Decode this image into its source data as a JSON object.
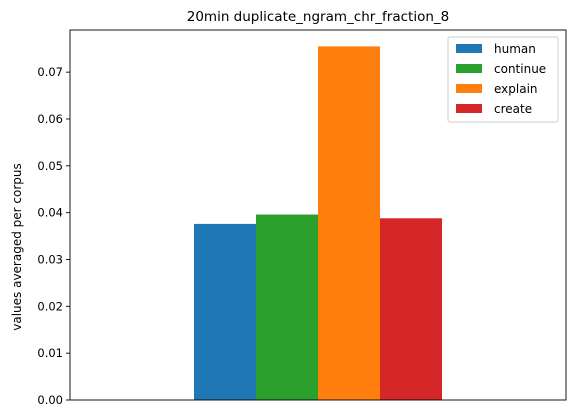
{
  "chart_data": {
    "type": "bar",
    "title": "20min duplicate_ngram_chr_fraction_8",
    "xlabel": "",
    "ylabel": "values averaged per corpus",
    "ylim": [
      0,
      0.079
    ],
    "yticks": [
      "0.00",
      "0.01",
      "0.02",
      "0.03",
      "0.04",
      "0.05",
      "0.06",
      "0.07"
    ],
    "grid": false,
    "legend_position": "top-right",
    "series": [
      {
        "name": "human",
        "value": 0.0376,
        "color": "#1f77b4"
      },
      {
        "name": "continue",
        "value": 0.0396,
        "color": "#2ca02c"
      },
      {
        "name": "explain",
        "value": 0.0755,
        "color": "#ff7f0e"
      },
      {
        "name": "create",
        "value": 0.0388,
        "color": "#d62728"
      }
    ]
  }
}
